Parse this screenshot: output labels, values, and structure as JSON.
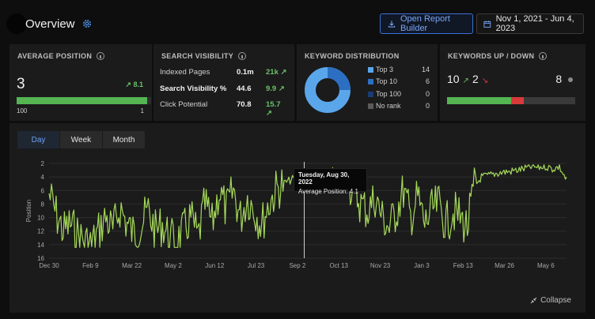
{
  "header": {
    "title": "Overview",
    "report_button": "Open Report Builder",
    "date_range": "Nov 1, 2021 - Jun 4, 2023"
  },
  "avg_position": {
    "title": "AVERAGE POSITION",
    "value": "3",
    "delta": "8.1",
    "bar_min": "100",
    "bar_max": "1",
    "bar_fill_fraction": 0.97
  },
  "search_visibility": {
    "title": "SEARCH VISIBILITY",
    "rows": [
      {
        "label": "Indexed Pages",
        "value": "0.1m",
        "delta": "21k"
      },
      {
        "label": "Search Visibility %",
        "value": "44.6",
        "delta": "9.9"
      },
      {
        "label": "Click Potential",
        "value": "70.8",
        "delta": "15.7"
      }
    ]
  },
  "keyword_distribution": {
    "title": "KEYWORD DISTRIBUTION",
    "rows": [
      {
        "label": "Top 3",
        "value": "14",
        "color": "#5aa6ea"
      },
      {
        "label": "Top 10",
        "value": "6",
        "color": "#2c6fc2"
      },
      {
        "label": "Top 100",
        "value": "0",
        "color": "#1a3c74"
      },
      {
        "label": "No rank",
        "value": "0",
        "color": "#5a5a5a"
      }
    ]
  },
  "keywords_up_down": {
    "title": "KEYWORDS UP / DOWN",
    "up": "10",
    "down": "2",
    "unchanged": "8",
    "colors": {
      "up": "#55b553",
      "down": "#d83a3a",
      "unchanged": "#3a3a3a"
    }
  },
  "tabs": [
    "Day",
    "Week",
    "Month"
  ],
  "collapse_label": "Collapse",
  "tooltip": {
    "date": "Tuesday, Aug 30, 2022",
    "text": "Average Position: 4.1"
  },
  "chart_data": {
    "type": "line",
    "ylabel": "Position",
    "y_ticks": [
      "2",
      "4",
      "6",
      "8",
      "10",
      "12",
      "14",
      "16"
    ],
    "ylim": [
      16,
      2
    ],
    "x_ticks": [
      "Dec 30",
      "Feb 9",
      "Mar 22",
      "May 2",
      "Jun 12",
      "Jul 23",
      "Sep 2",
      "Oct 13",
      "Nov 23",
      "Jan 3",
      "Feb 13",
      "Mar 26",
      "May 6"
    ],
    "grid": true,
    "series": [
      {
        "color": "#a5d85a",
        "points": [
          [
            "Dec 30",
            6.5
          ],
          [
            "Jan 5",
            9.5
          ],
          [
            "Jan 12",
            12
          ],
          [
            "Jan 20",
            11
          ],
          [
            "Jan 28",
            12.5
          ],
          [
            "Feb 4",
            13.5
          ],
          [
            "Feb 9",
            14
          ],
          [
            "Feb 16",
            12
          ],
          [
            "Feb 24",
            10
          ],
          [
            "Mar 3",
            12
          ],
          [
            "Mar 10",
            8.5
          ],
          [
            "Mar 17",
            11
          ],
          [
            "Mar 22",
            12.5
          ],
          [
            "Mar 29",
            11
          ],
          [
            "Apr 6",
            9
          ],
          [
            "Apr 14",
            12
          ],
          [
            "Apr 22",
            11
          ],
          [
            "Apr 28",
            13
          ],
          [
            "May 2",
            13.5
          ],
          [
            "May 10",
            12
          ],
          [
            "May 18",
            10
          ],
          [
            "May 26",
            13
          ],
          [
            "Jun 3",
            8
          ],
          [
            "Jun 8",
            11
          ],
          [
            "Jun 12",
            6
          ],
          [
            "Jun 18",
            9
          ],
          [
            "Jun 24",
            6
          ],
          [
            "Jun 30",
            10
          ],
          [
            "Jul 6",
            7
          ],
          [
            "Jul 12",
            9
          ],
          [
            "Jul 16",
            11
          ],
          [
            "Jul 23",
            8
          ],
          [
            "Jul 30",
            6
          ],
          [
            "Aug 6",
            5
          ],
          [
            "Aug 14",
            4.5
          ],
          [
            "Aug 22",
            4
          ],
          [
            "Aug 30",
            4.1
          ],
          [
            "Sep 2",
            4.5
          ],
          [
            "Sep 10",
            5
          ],
          [
            "Sep 18",
            4.5
          ],
          [
            "Sep 26",
            5
          ],
          [
            "Oct 4",
            4.5
          ],
          [
            "Oct 13",
            4.5
          ],
          [
            "Oct 20",
            6
          ],
          [
            "Oct 28",
            8
          ],
          [
            "Nov 5",
            9
          ],
          [
            "Nov 12",
            7
          ],
          [
            "Nov 18",
            10
          ],
          [
            "Nov 23",
            11.5
          ],
          [
            "Nov 30",
            9
          ],
          [
            "Dec 8",
            6
          ],
          [
            "Dec 16",
            10
          ],
          [
            "Dec 24",
            7
          ],
          [
            "Dec 30",
            11
          ],
          [
            "Jan 3",
            9
          ],
          [
            "Jan 10",
            8
          ],
          [
            "Jan 18",
            11
          ],
          [
            "Jan 26",
            9
          ],
          [
            "Feb 3",
            10
          ],
          [
            "Feb 9",
            11.5
          ],
          [
            "Feb 13",
            5.5
          ],
          [
            "Feb 20",
            4
          ],
          [
            "Mar 1",
            3.8
          ],
          [
            "Mar 10",
            3.5
          ],
          [
            "Mar 18",
            3.3
          ],
          [
            "Mar 26",
            3.2
          ],
          [
            "Apr 3",
            3
          ],
          [
            "Apr 12",
            2.8
          ],
          [
            "Apr 20",
            2.5
          ],
          [
            "Apr 28",
            2.6
          ],
          [
            "May 6",
            2.4
          ],
          [
            "May 14",
            2.8
          ],
          [
            "May 22",
            2.5
          ],
          [
            "May 28",
            4.5
          ]
        ]
      }
    ]
  }
}
